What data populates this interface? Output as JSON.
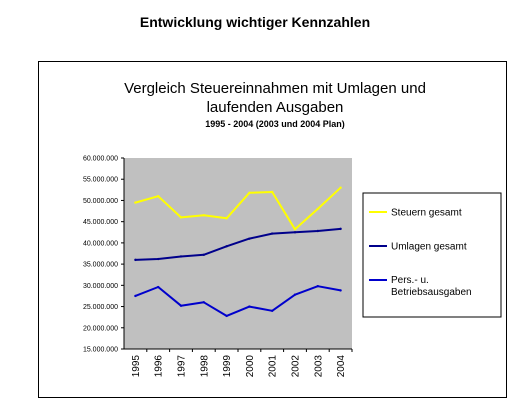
{
  "page": {
    "heading": "Entwicklung wichtiger Kennzahlen"
  },
  "colors": {
    "plot_background": "#c0c0c0",
    "axis": "#000000",
    "steuern": "#ffff00",
    "umlagen": "#00008b",
    "personal": "#0000cc"
  },
  "chart_data": {
    "type": "line",
    "title_line1": "Vergleich Steuereinnahmen mit Umlagen und",
    "title_line2": "laufenden Ausgaben",
    "subtitle": "1995 - 2004 (2003 und 2004 Plan)",
    "xlabel": "",
    "ylabel": "",
    "x": [
      "1995",
      "1996",
      "1997",
      "1998",
      "1999",
      "2000",
      "2001",
      "2002",
      "2003",
      "2004"
    ],
    "ylim": [
      15000000,
      60000000
    ],
    "yticks": [
      "60.000.000",
      "55.000.000",
      "50.000.000",
      "45.000.000",
      "40.000.000",
      "35.000.000",
      "30.000.000",
      "25.000.000",
      "20.000.000",
      "15.000.000"
    ],
    "ytick_values": [
      60000000,
      55000000,
      50000000,
      45000000,
      40000000,
      35000000,
      30000000,
      25000000,
      20000000,
      15000000
    ],
    "grid": false,
    "legend_position": "right",
    "series": [
      {
        "name": "Steuern gesamt",
        "color": "#ffff00",
        "values": [
          49500000,
          51000000,
          46000000,
          46500000,
          45800000,
          51800000,
          52000000,
          43200000,
          48000000,
          53000000
        ]
      },
      {
        "name": "Umlagen gesamt",
        "color": "#00008b",
        "values": [
          36000000,
          36200000,
          36800000,
          37200000,
          39200000,
          41000000,
          42200000,
          42500000,
          42800000,
          43300000
        ]
      },
      {
        "name": "Pers.- u. Betriebsausgaben",
        "name_line1": "Pers.- u.",
        "name_line2": "Betriebsausgaben",
        "color": "#0000cc",
        "values": [
          27500000,
          29600000,
          25200000,
          26000000,
          22800000,
          25000000,
          24000000,
          27800000,
          29800000,
          28800000
        ]
      }
    ]
  }
}
